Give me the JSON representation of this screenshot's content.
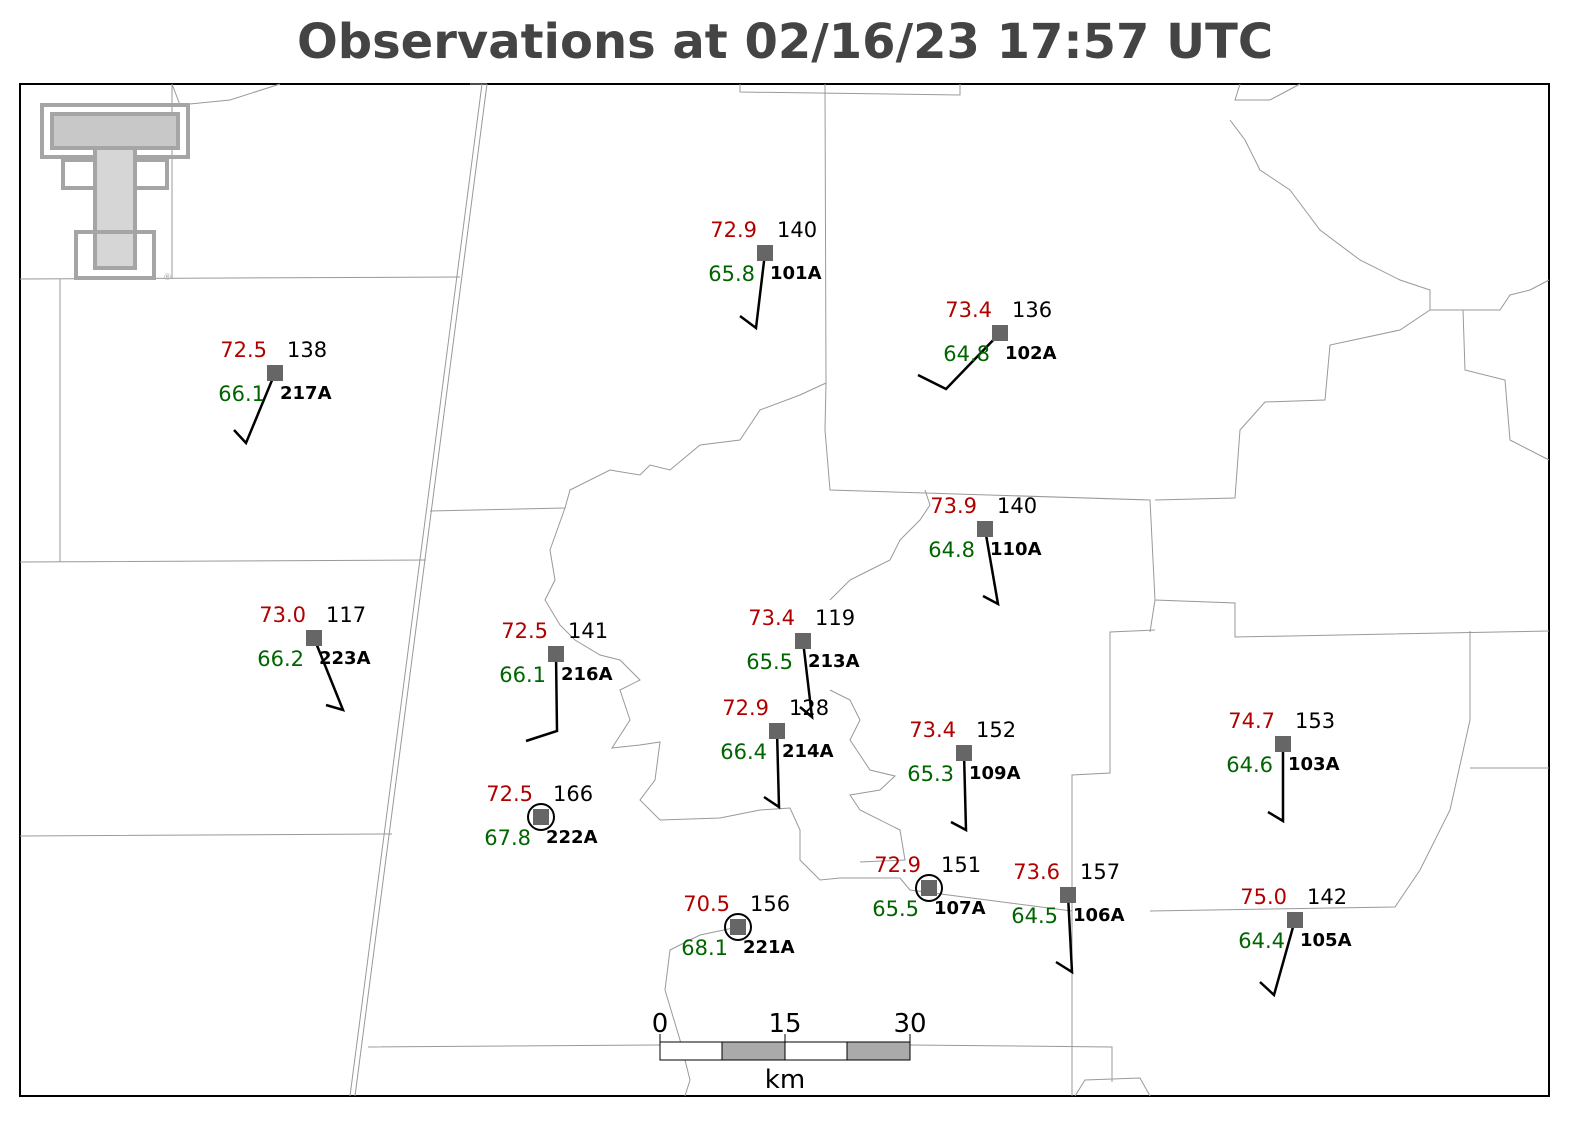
{
  "title": "Observations at 02/16/23 17:57 UTC",
  "stations": [
    {
      "id": "101A",
      "temperature": "72.9",
      "dewpoint": "65.8",
      "pressure": "140"
    },
    {
      "id": "102A",
      "temperature": "73.4",
      "dewpoint": "64.8",
      "pressure": "136"
    },
    {
      "id": "217A",
      "temperature": "72.5",
      "dewpoint": "66.1",
      "pressure": "138"
    },
    {
      "id": "223A",
      "temperature": "73.0",
      "dewpoint": "66.2",
      "pressure": "117"
    },
    {
      "id": "110A",
      "temperature": "73.9",
      "dewpoint": "64.8",
      "pressure": "140"
    },
    {
      "id": "216A",
      "temperature": "72.5",
      "dewpoint": "66.1",
      "pressure": "141"
    },
    {
      "id": "213A",
      "temperature": "73.4",
      "dewpoint": "65.5",
      "pressure": "119"
    },
    {
      "id": "214A",
      "temperature": "72.9",
      "dewpoint": "66.4",
      "pressure": "128"
    },
    {
      "id": "109A",
      "temperature": "73.4",
      "dewpoint": "65.3",
      "pressure": "152"
    },
    {
      "id": "103A",
      "temperature": "74.7",
      "dewpoint": "64.6",
      "pressure": "153"
    },
    {
      "id": "222A",
      "temperature": "72.5",
      "dewpoint": "67.8",
      "pressure": "166"
    },
    {
      "id": "107A",
      "temperature": "72.9",
      "dewpoint": "65.5",
      "pressure": "151"
    },
    {
      "id": "221A",
      "temperature": "70.5",
      "dewpoint": "68.1",
      "pressure": "156"
    },
    {
      "id": "106A",
      "temperature": "73.6",
      "dewpoint": "64.5",
      "pressure": "157"
    },
    {
      "id": "105A",
      "temperature": "75.0",
      "dewpoint": "64.4",
      "pressure": "142"
    }
  ],
  "scale_bar": {
    "labels": [
      "0",
      "15",
      "30"
    ],
    "unit": "km"
  }
}
